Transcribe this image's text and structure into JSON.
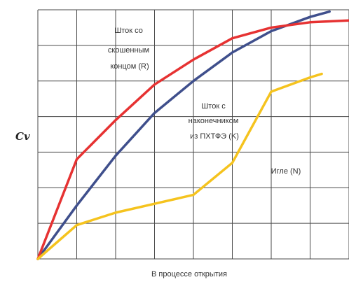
{
  "chart_data": {
    "type": "line",
    "title": "",
    "xlabel": "В процессе открытия",
    "ylabel": "Cv",
    "xlim": [
      0,
      8
    ],
    "ylim": [
      0,
      7
    ],
    "grid": true,
    "legend": "none",
    "series": [
      {
        "name": "Шток со скошенным концом (R)",
        "color": "#e63232",
        "points": [
          [
            0,
            0
          ],
          [
            1,
            2.8
          ],
          [
            2,
            3.9
          ],
          [
            3,
            4.9
          ],
          [
            4,
            5.6
          ],
          [
            5,
            6.2
          ],
          [
            6,
            6.5
          ],
          [
            7,
            6.65
          ],
          [
            8,
            6.7
          ]
        ]
      },
      {
        "name": "Шток с наконечником из ПХТФЭ (K)",
        "color": "#3f4f8c",
        "points": [
          [
            0,
            0
          ],
          [
            1,
            1.5
          ],
          [
            2,
            2.9
          ],
          [
            3,
            4.1
          ],
          [
            4,
            5.0
          ],
          [
            5,
            5.8
          ],
          [
            6,
            6.4
          ],
          [
            7,
            6.8
          ],
          [
            7.5,
            6.95
          ]
        ]
      },
      {
        "name": "Игле (N)",
        "color": "#f5c31e",
        "points": [
          [
            0,
            0
          ],
          [
            1,
            0.95
          ],
          [
            2,
            1.3
          ],
          [
            3,
            1.55
          ],
          [
            4,
            1.8
          ],
          [
            5,
            2.7
          ],
          [
            6,
            4.7
          ],
          [
            7,
            5.1
          ],
          [
            7.3,
            5.2
          ]
        ]
      }
    ],
    "annotations": [
      {
        "series": 0,
        "lines": [
          "Шток со",
          "скошенным",
          "концом (R)"
        ]
      },
      {
        "series": 1,
        "lines": [
          "Шток с",
          "наконечником",
          "из ПХТФЭ (K)"
        ]
      },
      {
        "series": 2,
        "lines": [
          "Игле (N)"
        ]
      }
    ]
  }
}
